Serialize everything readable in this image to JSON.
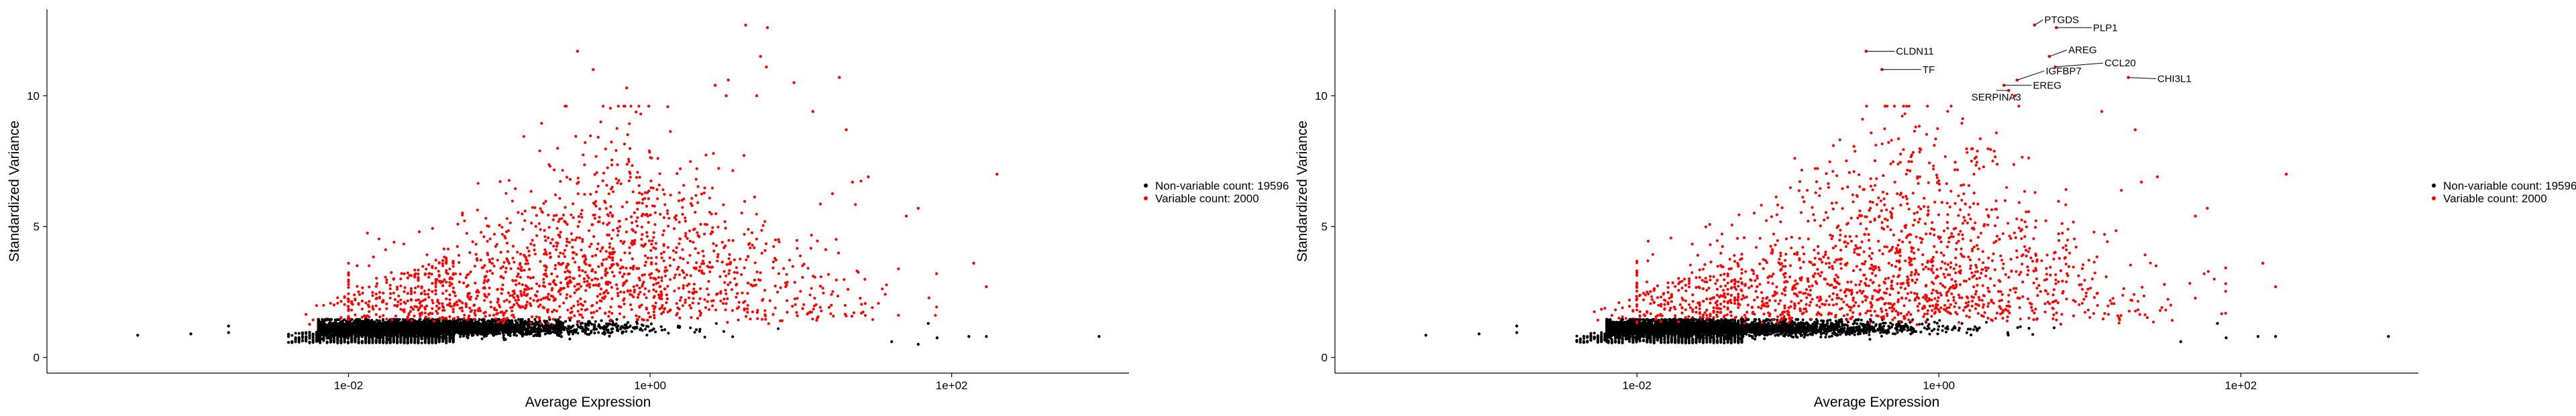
{
  "chart_data": [
    {
      "type": "scatter",
      "xscale": "log10",
      "xlabel": "Average Expression",
      "ylabel": "Standardized Variance",
      "xlim": [
        0.0001,
        1500
      ],
      "ylim": [
        -0.6,
        13.3
      ],
      "xticks": [
        {
          "value": 0.01,
          "label": "1e-02"
        },
        {
          "value": 1,
          "label": "1e+00"
        },
        {
          "value": 100,
          "label": "1e+02"
        }
      ],
      "yticks": [
        {
          "value": 0,
          "label": "0"
        },
        {
          "value": 5,
          "label": "5"
        },
        {
          "value": 10,
          "label": "10"
        }
      ],
      "grid": false,
      "legend_position": "right",
      "series": [
        {
          "name": "Non-variable count: 19596",
          "color": "#000000",
          "count": 19596
        },
        {
          "name": "Variable count: 2000",
          "color": "#ff0000",
          "count": 2000
        }
      ],
      "highlight_points": [
        {
          "x": 4.3,
          "y": 12.7,
          "series": 1
        },
        {
          "x": 6.0,
          "y": 12.6,
          "series": 1
        },
        {
          "x": 0.33,
          "y": 11.7,
          "series": 1
        },
        {
          "x": 5.4,
          "y": 11.5,
          "series": 1
        },
        {
          "x": 5.9,
          "y": 11.1,
          "series": 1
        },
        {
          "x": 0.42,
          "y": 11.0,
          "series": 1
        },
        {
          "x": 3.3,
          "y": 10.6,
          "series": 1
        },
        {
          "x": 18.0,
          "y": 10.7,
          "series": 1
        },
        {
          "x": 9.0,
          "y": 10.5,
          "series": 1
        },
        {
          "x": 2.7,
          "y": 10.4,
          "series": 1
        },
        {
          "x": 0.7,
          "y": 10.3,
          "series": 1
        },
        {
          "x": 3.2,
          "y": 10.0,
          "series": 1
        },
        {
          "x": 5.1,
          "y": 10.0,
          "series": 1
        },
        {
          "x": 12.0,
          "y": 9.4,
          "series": 1
        },
        {
          "x": 20.0,
          "y": 8.7,
          "series": 1
        },
        {
          "x": 200,
          "y": 7.0,
          "series": 1
        },
        {
          "x": 28.0,
          "y": 6.9,
          "series": 1
        },
        {
          "x": 22.0,
          "y": 6.7,
          "series": 1
        },
        {
          "x": 60.0,
          "y": 5.7,
          "series": 1
        },
        {
          "x": 50.0,
          "y": 5.4,
          "series": 1
        },
        {
          "x": 140,
          "y": 3.6,
          "series": 1
        },
        {
          "x": 170,
          "y": 2.7,
          "series": 1
        },
        {
          "x": 0.0004,
          "y": 0.85,
          "series": 0
        },
        {
          "x": 0.0009,
          "y": 0.9,
          "series": 0
        },
        {
          "x": 0.0016,
          "y": 0.95,
          "series": 0
        },
        {
          "x": 0.0016,
          "y": 1.2,
          "series": 0
        },
        {
          "x": 950,
          "y": 0.8,
          "series": 0
        },
        {
          "x": 170,
          "y": 0.8,
          "series": 0
        },
        {
          "x": 130,
          "y": 0.8,
          "series": 0
        },
        {
          "x": 80,
          "y": 0.75,
          "series": 0
        },
        {
          "x": 70,
          "y": 1.3,
          "series": 0
        },
        {
          "x": 40,
          "y": 0.6,
          "series": 0
        },
        {
          "x": 60,
          "y": 0.5,
          "series": 0
        }
      ],
      "labeled_genes": []
    },
    {
      "type": "scatter",
      "xscale": "log10",
      "xlabel": "Average Expression",
      "ylabel": "Standardized Variance",
      "xlim": [
        0.0001,
        1500
      ],
      "ylim": [
        -0.6,
        13.3
      ],
      "xticks": [
        {
          "value": 0.01,
          "label": "1e-02"
        },
        {
          "value": 1,
          "label": "1e+00"
        },
        {
          "value": 100,
          "label": "1e+02"
        }
      ],
      "yticks": [
        {
          "value": 0,
          "label": "0"
        },
        {
          "value": 5,
          "label": "5"
        },
        {
          "value": 10,
          "label": "10"
        }
      ],
      "grid": false,
      "legend_position": "right",
      "series": [
        {
          "name": "Non-variable count: 19596",
          "color": "#000000",
          "count": 19596
        },
        {
          "name": "Variable count: 2000",
          "color": "#ff0000",
          "count": 2000
        }
      ],
      "highlight_points": [
        {
          "x": 0.33,
          "y": 11.7,
          "series": 1
        },
        {
          "x": 0.42,
          "y": 11.0,
          "series": 1
        },
        {
          "x": 3.2,
          "y": 10.0,
          "series": 1
        },
        {
          "x": 12.0,
          "y": 9.4,
          "series": 1
        },
        {
          "x": 20.0,
          "y": 8.7,
          "series": 1
        },
        {
          "x": 200,
          "y": 7.0,
          "series": 1
        },
        {
          "x": 28.0,
          "y": 6.9,
          "series": 1
        },
        {
          "x": 22.0,
          "y": 6.7,
          "series": 1
        },
        {
          "x": 60.0,
          "y": 5.7,
          "series": 1
        },
        {
          "x": 50.0,
          "y": 5.4,
          "series": 1
        },
        {
          "x": 140,
          "y": 3.6,
          "series": 1
        },
        {
          "x": 170,
          "y": 2.7,
          "series": 1
        },
        {
          "x": 0.0004,
          "y": 0.85,
          "series": 0
        },
        {
          "x": 0.0009,
          "y": 0.9,
          "series": 0
        },
        {
          "x": 0.0016,
          "y": 0.95,
          "series": 0
        },
        {
          "x": 0.0016,
          "y": 1.2,
          "series": 0
        },
        {
          "x": 950,
          "y": 0.8,
          "series": 0
        },
        {
          "x": 170,
          "y": 0.8,
          "series": 0
        },
        {
          "x": 130,
          "y": 0.8,
          "series": 0
        },
        {
          "x": 80,
          "y": 0.75,
          "series": 0
        },
        {
          "x": 70,
          "y": 1.3,
          "series": 0
        },
        {
          "x": 40,
          "y": 0.6,
          "series": 0
        }
      ],
      "labeled_genes": [
        {
          "label": "PTGDS",
          "x": 4.3,
          "y": 12.7,
          "lx": 5.0,
          "ly": 12.9,
          "anchor": "start"
        },
        {
          "label": "PLP1",
          "x": 6.0,
          "y": 12.6,
          "lx": 10.5,
          "ly": 12.6,
          "anchor": "start"
        },
        {
          "label": "CLDN11",
          "x": 0.33,
          "y": 11.7,
          "lx": 0.52,
          "ly": 11.7,
          "anchor": "start"
        },
        {
          "label": "AREG",
          "x": 5.4,
          "y": 11.5,
          "lx": 7.2,
          "ly": 11.75,
          "anchor": "start"
        },
        {
          "label": "CCL20",
          "x": 5.9,
          "y": 11.1,
          "lx": 12.5,
          "ly": 11.25,
          "anchor": "start"
        },
        {
          "label": "TF",
          "x": 0.42,
          "y": 11.0,
          "lx": 0.78,
          "ly": 11.0,
          "anchor": "start"
        },
        {
          "label": "IGFBP7",
          "x": 3.3,
          "y": 10.6,
          "lx": 5.1,
          "ly": 10.95,
          "anchor": "start"
        },
        {
          "label": "CHI3L1",
          "x": 18.0,
          "y": 10.7,
          "lx": 28.0,
          "ly": 10.65,
          "anchor": "start"
        },
        {
          "label": "EREG",
          "x": 2.7,
          "y": 10.4,
          "lx": 4.2,
          "ly": 10.4,
          "anchor": "start"
        },
        {
          "label": "SERPINA3",
          "x": 2.9,
          "y": 10.2,
          "lx": 2.4,
          "ly": 9.95,
          "anchor": "middle"
        }
      ]
    }
  ]
}
